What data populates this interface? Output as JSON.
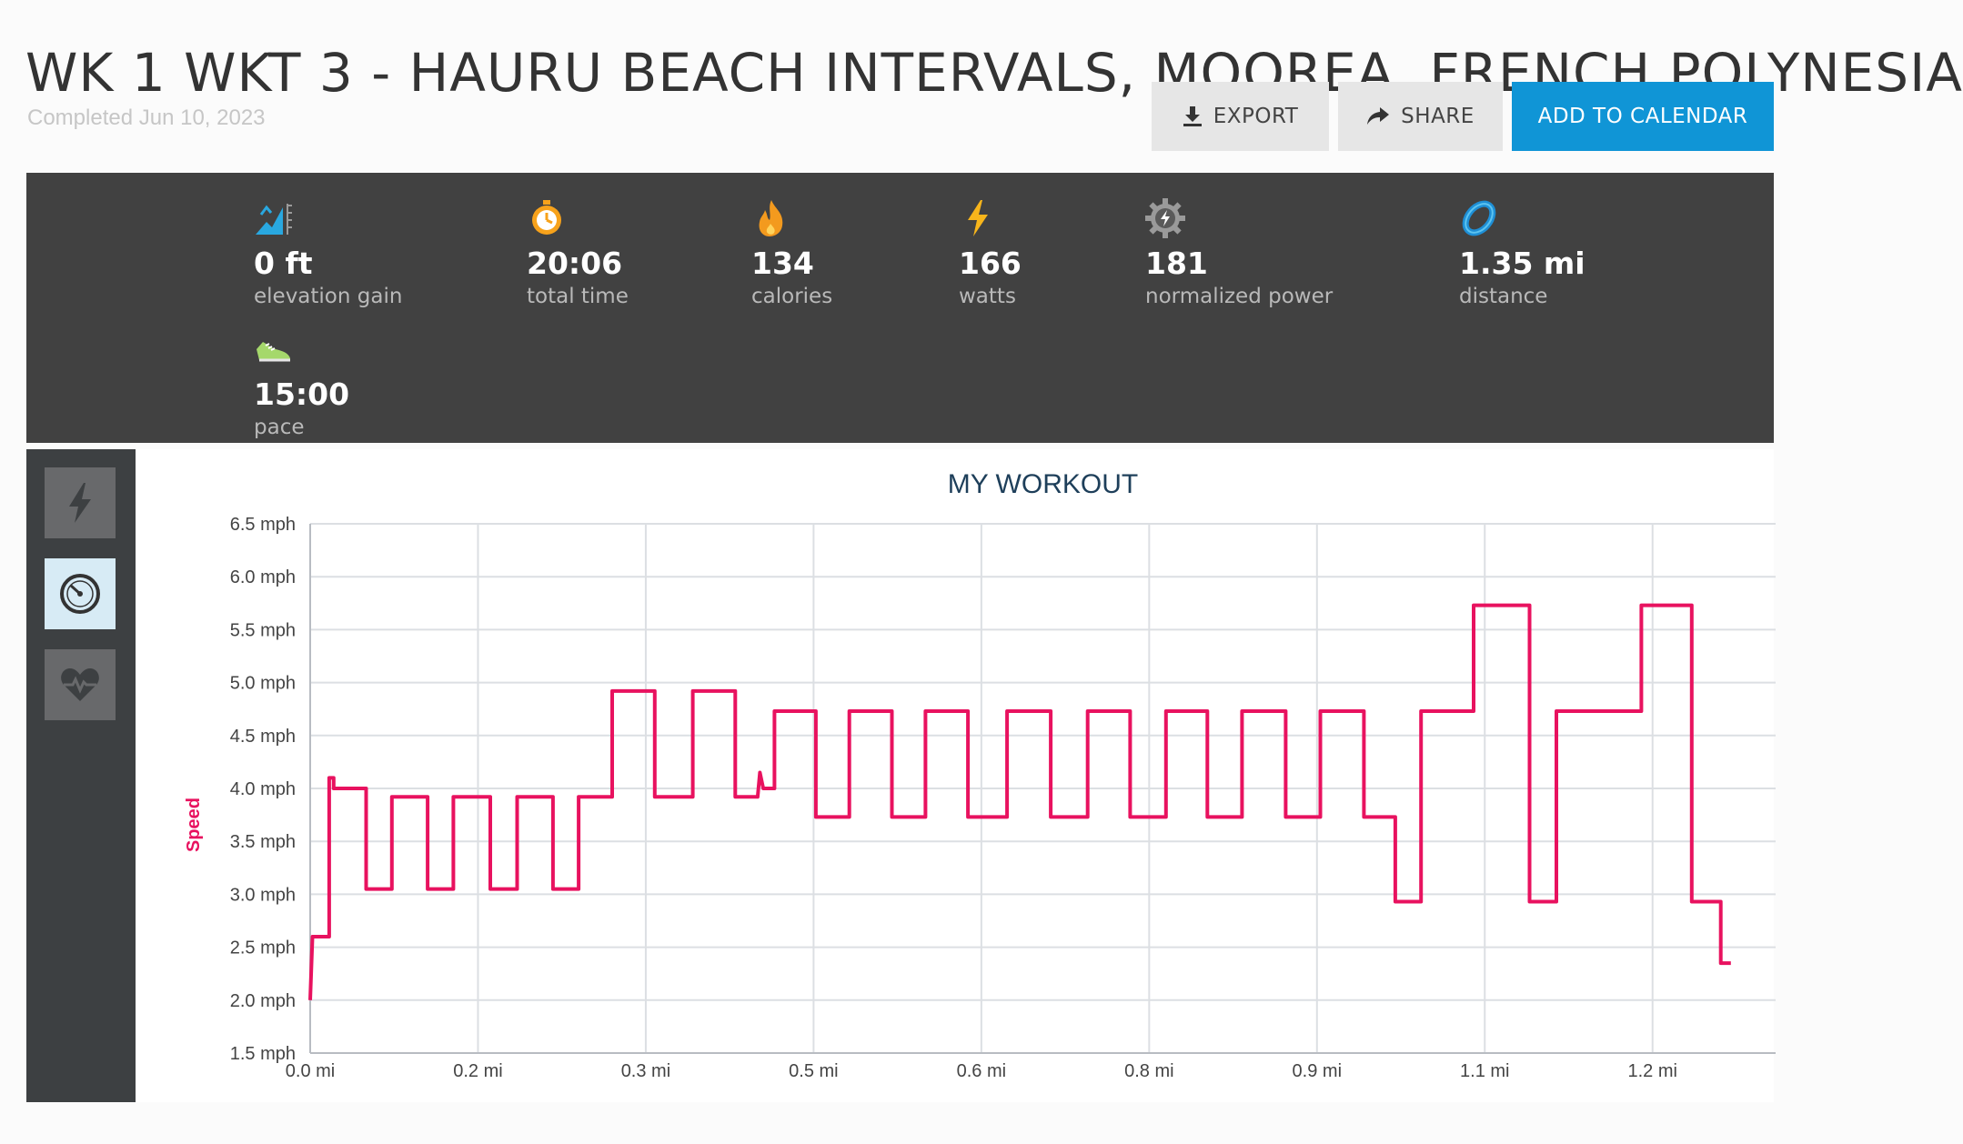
{
  "header": {
    "title": "WK 1 WKT 3 - HAURU BEACH INTERVALS, MOOREA, FRENCH POLYNESIA",
    "completed": "Completed Jun 10, 2023"
  },
  "actions": {
    "export": "EXPORT",
    "share": "SHARE",
    "add_to_calendar": "ADD TO CALENDAR"
  },
  "stats": {
    "elevation": {
      "value": "0 ft",
      "label": "elevation gain",
      "icon": "elevation-icon"
    },
    "time": {
      "value": "20:06",
      "label": "total time",
      "icon": "stopwatch-icon"
    },
    "calories": {
      "value": "134",
      "label": "calories",
      "icon": "flame-icon"
    },
    "watts": {
      "value": "166",
      "label": "watts",
      "icon": "lightning-icon"
    },
    "normalized_power": {
      "value": "181",
      "label": "normalized power",
      "icon": "gear-icon"
    },
    "distance": {
      "value": "1.35 mi",
      "label": "distance",
      "icon": "distance-ring-icon"
    },
    "pace": {
      "value": "15:00",
      "label": "pace",
      "icon": "shoe-icon"
    }
  },
  "graph_toggles": [
    {
      "icon": "lightning-icon",
      "active": false
    },
    {
      "icon": "speedometer-icon",
      "active": true
    },
    {
      "icon": "heart-rate-icon",
      "active": false
    }
  ],
  "colors": {
    "accent": "#1095d6",
    "series": "#e8125f",
    "stats_bg": "#414141"
  },
  "chart_data": {
    "type": "line",
    "title": "MY WORKOUT",
    "ylabel": "Speed",
    "xlabel": "",
    "ylim": [
      1.5,
      6.5
    ],
    "xlim": [
      0.0,
      1.31
    ],
    "x_ticks": [
      {
        "v": 0.0,
        "label": "0.0 mi"
      },
      {
        "v": 0.15,
        "label": "0.2 mi"
      },
      {
        "v": 0.3,
        "label": "0.3 mi"
      },
      {
        "v": 0.45,
        "label": "0.5 mi"
      },
      {
        "v": 0.6,
        "label": "0.6 mi"
      },
      {
        "v": 0.75,
        "label": "0.8 mi"
      },
      {
        "v": 0.9,
        "label": "0.9 mi"
      },
      {
        "v": 1.05,
        "label": "1.1 mi"
      },
      {
        "v": 1.2,
        "label": "1.2 mi"
      }
    ],
    "y_ticks": [
      "1.5 mph",
      "2.0 mph",
      "2.5 mph",
      "3.0 mph",
      "3.5 mph",
      "4.0 mph",
      "4.5 mph",
      "5.0 mph",
      "5.5 mph",
      "6.0 mph",
      "6.5 mph"
    ],
    "y_tick_values": [
      1.5,
      2.0,
      2.5,
      3.0,
      3.5,
      4.0,
      4.5,
      5.0,
      5.5,
      6.0,
      6.5
    ],
    "grid": true,
    "series": [
      {
        "name": "Speed",
        "color": "#e8125f",
        "points": [
          [
            0.0,
            2.0
          ],
          [
            0.002,
            2.6
          ],
          [
            0.017,
            2.6
          ],
          [
            0.017,
            4.1
          ],
          [
            0.021,
            4.1
          ],
          [
            0.021,
            4.0
          ],
          [
            0.05,
            4.0
          ],
          [
            0.05,
            3.05
          ],
          [
            0.073,
            3.05
          ],
          [
            0.073,
            3.92
          ],
          [
            0.105,
            3.92
          ],
          [
            0.105,
            3.05
          ],
          [
            0.128,
            3.05
          ],
          [
            0.128,
            3.92
          ],
          [
            0.161,
            3.92
          ],
          [
            0.161,
            3.05
          ],
          [
            0.185,
            3.05
          ],
          [
            0.185,
            3.92
          ],
          [
            0.217,
            3.92
          ],
          [
            0.217,
            3.05
          ],
          [
            0.24,
            3.05
          ],
          [
            0.24,
            3.92
          ],
          [
            0.27,
            3.92
          ],
          [
            0.27,
            4.92
          ],
          [
            0.308,
            4.92
          ],
          [
            0.308,
            3.92
          ],
          [
            0.342,
            3.92
          ],
          [
            0.342,
            4.92
          ],
          [
            0.38,
            4.92
          ],
          [
            0.38,
            3.92
          ],
          [
            0.4,
            3.92
          ],
          [
            0.402,
            4.15
          ],
          [
            0.405,
            4.0
          ],
          [
            0.415,
            4.0
          ],
          [
            0.415,
            4.73
          ],
          [
            0.452,
            4.73
          ],
          [
            0.452,
            3.73
          ],
          [
            0.482,
            3.73
          ],
          [
            0.482,
            4.73
          ],
          [
            0.52,
            4.73
          ],
          [
            0.52,
            3.73
          ],
          [
            0.55,
            3.73
          ],
          [
            0.55,
            4.73
          ],
          [
            0.588,
            4.73
          ],
          [
            0.588,
            3.73
          ],
          [
            0.623,
            3.73
          ],
          [
            0.623,
            4.73
          ],
          [
            0.662,
            4.73
          ],
          [
            0.662,
            3.73
          ],
          [
            0.695,
            3.73
          ],
          [
            0.695,
            4.73
          ],
          [
            0.733,
            4.73
          ],
          [
            0.733,
            3.73
          ],
          [
            0.765,
            3.73
          ],
          [
            0.765,
            4.73
          ],
          [
            0.802,
            4.73
          ],
          [
            0.802,
            3.73
          ],
          [
            0.833,
            3.73
          ],
          [
            0.833,
            4.73
          ],
          [
            0.872,
            4.73
          ],
          [
            0.872,
            3.73
          ],
          [
            0.903,
            3.73
          ],
          [
            0.903,
            4.73
          ],
          [
            0.942,
            4.73
          ],
          [
            0.942,
            3.73
          ],
          [
            0.97,
            3.73
          ],
          [
            0.97,
            2.93
          ],
          [
            0.993,
            2.93
          ],
          [
            0.993,
            4.73
          ],
          [
            1.04,
            4.73
          ],
          [
            1.04,
            5.73
          ],
          [
            1.09,
            5.73
          ],
          [
            1.09,
            2.93
          ],
          [
            1.114,
            2.93
          ],
          [
            1.114,
            4.73
          ],
          [
            1.19,
            4.73
          ],
          [
            1.19,
            5.73
          ],
          [
            1.235,
            5.73
          ],
          [
            1.235,
            2.93
          ],
          [
            1.261,
            2.93
          ],
          [
            1.261,
            2.35
          ],
          [
            1.27,
            2.35
          ]
        ]
      }
    ]
  }
}
